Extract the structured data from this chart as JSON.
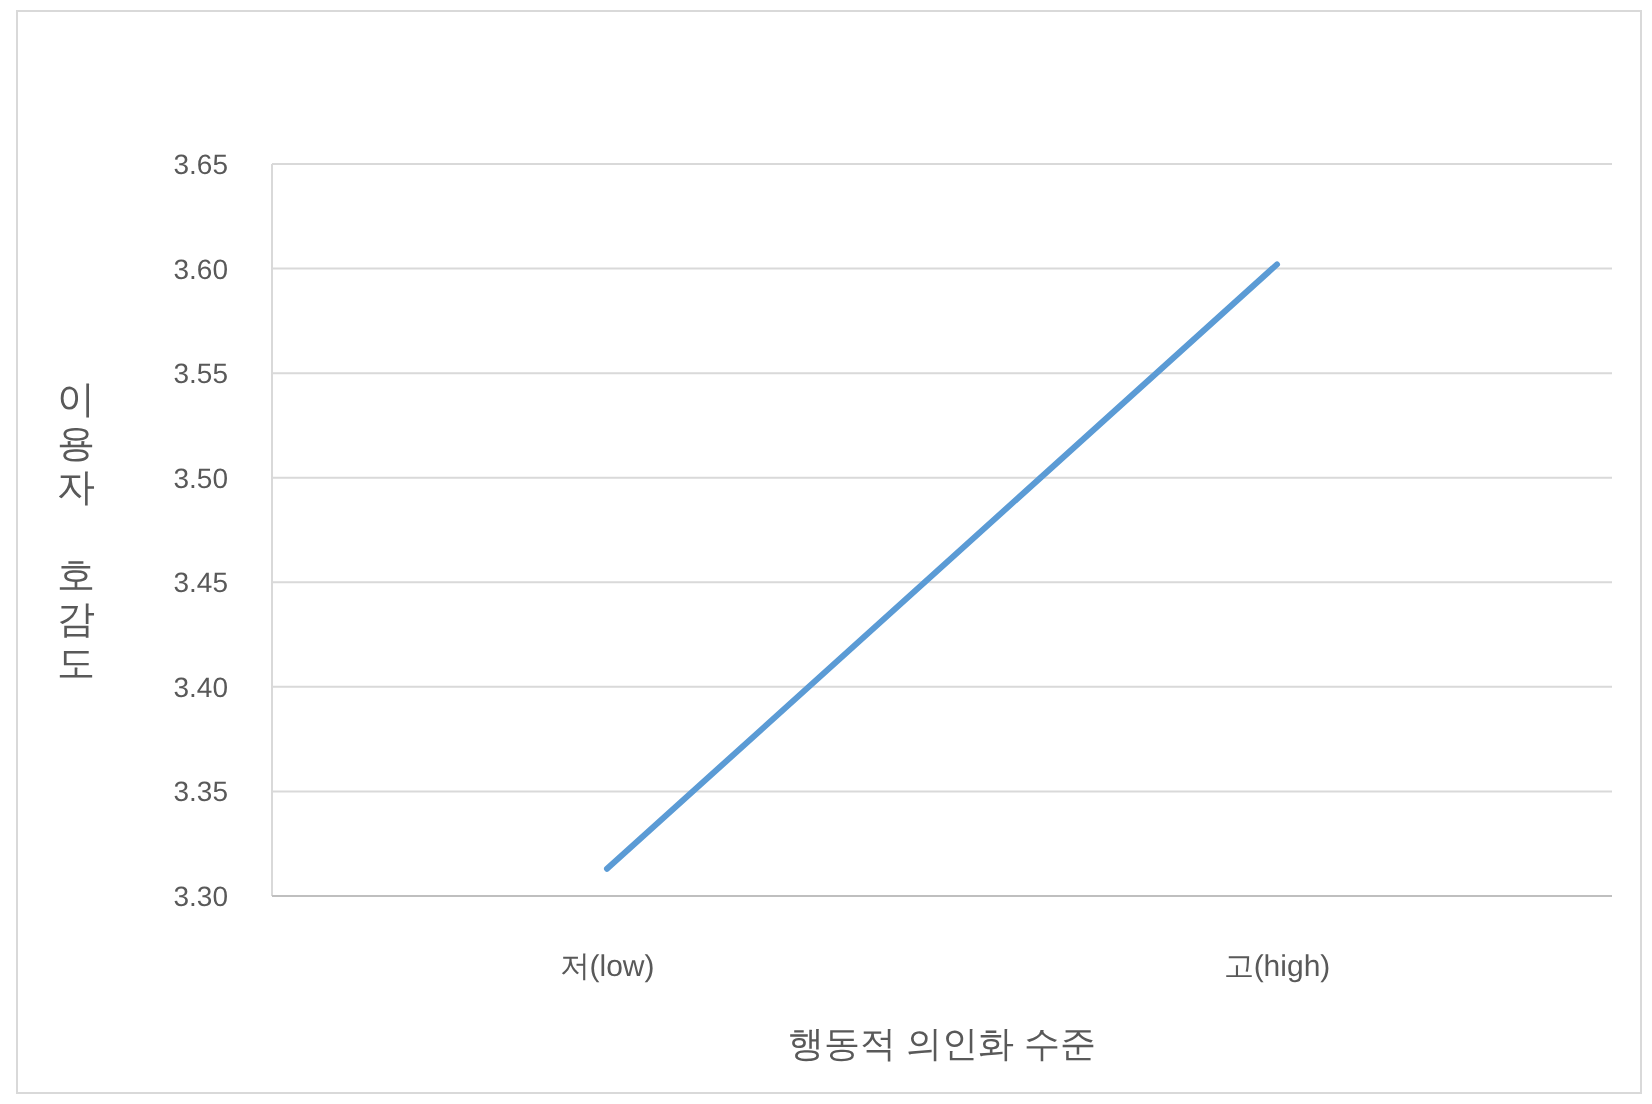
{
  "chart_data": {
    "type": "line",
    "xlabel": "행동적 의인화 수준",
    "ylabel": "이용자 호감도",
    "categories": [
      "저(low)",
      "고(high)"
    ],
    "series": [
      {
        "color": "#5b9bd5",
        "values": [
          3.313,
          3.602
        ]
      }
    ],
    "ylim": [
      3.3,
      3.65
    ],
    "yticks": [
      {
        "value": 3.3,
        "label": "3.30"
      },
      3.35,
      {
        "value": 3.4,
        "label": "3.40"
      },
      3.45,
      {
        "value": 3.5,
        "label": "3.50"
      },
      3.55,
      {
        "value": 3.6,
        "label": "3.60"
      },
      3.65
    ],
    "grid": "y",
    "marker": "none",
    "line_style": "solid"
  }
}
